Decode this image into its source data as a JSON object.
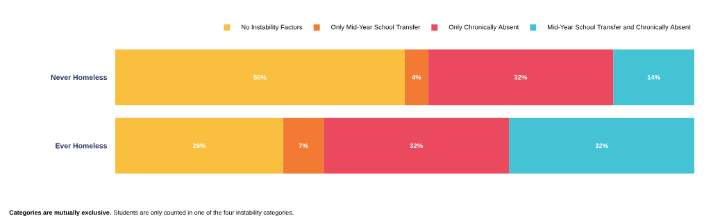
{
  "chart_data": {
    "type": "bar",
    "orientation": "horizontal",
    "stacked": true,
    "categories": [
      "Never Homeless",
      "Ever Homeless"
    ],
    "series": [
      {
        "name": "No Instability Factors",
        "color": "#fbbf40",
        "values": [
          50,
          29
        ],
        "value_labels": [
          "50%",
          "29%"
        ]
      },
      {
        "name": "Only Mid-Year School Transfer",
        "color": "#f27a33",
        "values": [
          4,
          7
        ],
        "value_labels": [
          "4%",
          "7%"
        ]
      },
      {
        "name": "Only Chronically Absent",
        "color": "#eb4a5e",
        "values": [
          32,
          32
        ],
        "value_labels": [
          "32%",
          "32%"
        ]
      },
      {
        "name": "Mid-Year School Transfer and Chronically Absent",
        "color": "#44c3d4",
        "values": [
          14,
          32
        ],
        "value_labels": [
          "14%",
          "32%"
        ]
      }
    ],
    "legend": "top",
    "annotations": [
      "**Categories are mutually exclusive.** Students are only counted in one of the four instability categories."
    ]
  }
}
